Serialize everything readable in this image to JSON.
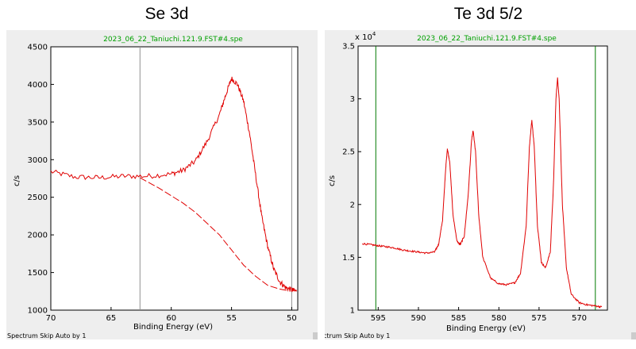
{
  "chart_data": [
    {
      "type": "line",
      "title": "Se 3d",
      "file_label": "2023_06_22_Taniuchi.121.9.FST#4.spe",
      "xlabel": "Binding Energy (eV)",
      "ylabel": "c/s",
      "status": "Spectrum Skip Auto by 1",
      "xlim": [
        70,
        49.5
      ],
      "ylim": [
        1000,
        4500
      ],
      "x_ticks": [
        70,
        65,
        60,
        55,
        50
      ],
      "y_ticks": [
        1000,
        1500,
        2000,
        2500,
        3000,
        3500,
        4000,
        4500
      ],
      "x_tick_labels": [
        "70",
        "65",
        "60",
        "55",
        "50"
      ],
      "y_tick_labels": [
        "1000",
        "1500",
        "2000",
        "2500",
        "3000",
        "3500",
        "4000",
        "4500"
      ],
      "markers": [
        62.6,
        50.0
      ],
      "marker_color": "#909090",
      "series": [
        {
          "style": "solid",
          "color": "#e00000",
          "noise": 35,
          "points": [
            [
              70,
              2840
            ],
            [
              68,
              2770
            ],
            [
              66,
              2760
            ],
            [
              64,
              2780
            ],
            [
              62,
              2780
            ],
            [
              60,
              2810
            ],
            [
              59,
              2860
            ],
            [
              58,
              2980
            ],
            [
              57,
              3250
            ],
            [
              56,
              3600
            ],
            [
              55.5,
              3850
            ],
            [
              55,
              4080
            ],
            [
              54.5,
              4000
            ],
            [
              54,
              3780
            ],
            [
              53.5,
              3350
            ],
            [
              53,
              2800
            ],
            [
              52.5,
              2250
            ],
            [
              52,
              1850
            ],
            [
              51.5,
              1550
            ],
            [
              51,
              1380
            ],
            [
              50.5,
              1300
            ],
            [
              50,
              1270
            ],
            [
              49.6,
              1250
            ]
          ]
        },
        {
          "style": "dashed",
          "color": "#e00000",
          "noise": 0,
          "points": [
            [
              62.6,
              2760
            ],
            [
              61,
              2620
            ],
            [
              60,
              2520
            ],
            [
              59,
              2420
            ],
            [
              58,
              2300
            ],
            [
              57,
              2150
            ],
            [
              56,
              2000
            ],
            [
              55,
              1800
            ],
            [
              54,
              1600
            ],
            [
              53,
              1450
            ],
            [
              52,
              1330
            ],
            [
              51,
              1280
            ],
            [
              50.3,
              1260
            ]
          ]
        }
      ]
    },
    {
      "type": "line",
      "title": "Te 3d 5/2",
      "file_label": "2023_06_22_Taniuchi.121.9.FST#4.spe",
      "xlabel": "Binding Energy (eV)",
      "ylabel": "c/s",
      "status": "ctrum Skip Auto by 1",
      "y_multiplier": "x 10",
      "y_multiplier_exp": "4",
      "xlim": [
        597.5,
        566.5
      ],
      "ylim": [
        1.0,
        3.5
      ],
      "x_ticks": [
        595,
        590,
        585,
        580,
        575,
        570
      ],
      "y_ticks": [
        1,
        1.5,
        2,
        2.5,
        3,
        3.5
      ],
      "x_tick_labels": [
        "595",
        "590",
        "585",
        "580",
        "575",
        "570"
      ],
      "y_tick_labels": [
        "1",
        "1.5",
        "2",
        "2.5",
        "3",
        "3.5"
      ],
      "markers": [
        595.3,
        568.0
      ],
      "marker_color": "#007a00",
      "series": [
        {
          "style": "solid",
          "color": "#e00000",
          "noise": 0.008,
          "points": [
            [
              597,
              1.63
            ],
            [
              596,
              1.62
            ],
            [
              595,
              1.61
            ],
            [
              594,
              1.6
            ],
            [
              593,
              1.59
            ],
            [
              592,
              1.57
            ],
            [
              591,
              1.56
            ],
            [
              590,
              1.55
            ],
            [
              589,
              1.54
            ],
            [
              588,
              1.55
            ],
            [
              587.5,
              1.62
            ],
            [
              587,
              1.85
            ],
            [
              586.6,
              2.35
            ],
            [
              586.4,
              2.53
            ],
            [
              586.1,
              2.4
            ],
            [
              585.7,
              1.9
            ],
            [
              585.2,
              1.65
            ],
            [
              584.8,
              1.62
            ],
            [
              584.3,
              1.7
            ],
            [
              583.8,
              2.1
            ],
            [
              583.4,
              2.6
            ],
            [
              583.2,
              2.7
            ],
            [
              582.9,
              2.5
            ],
            [
              582.5,
              1.9
            ],
            [
              582,
              1.5
            ],
            [
              581,
              1.3
            ],
            [
              580,
              1.25
            ],
            [
              579,
              1.24
            ],
            [
              578,
              1.26
            ],
            [
              577.3,
              1.35
            ],
            [
              576.6,
              1.8
            ],
            [
              576.2,
              2.55
            ],
            [
              575.9,
              2.8
            ],
            [
              575.6,
              2.55
            ],
            [
              575.2,
              1.8
            ],
            [
              574.7,
              1.45
            ],
            [
              574.2,
              1.4
            ],
            [
              573.6,
              1.55
            ],
            [
              573.2,
              2.2
            ],
            [
              572.9,
              3.0
            ],
            [
              572.7,
              3.2
            ],
            [
              572.5,
              3.0
            ],
            [
              572.1,
              2.0
            ],
            [
              571.6,
              1.4
            ],
            [
              571,
              1.15
            ],
            [
              570,
              1.07
            ],
            [
              569,
              1.05
            ],
            [
              568,
              1.04
            ],
            [
              567.2,
              1.03
            ]
          ]
        }
      ]
    }
  ]
}
